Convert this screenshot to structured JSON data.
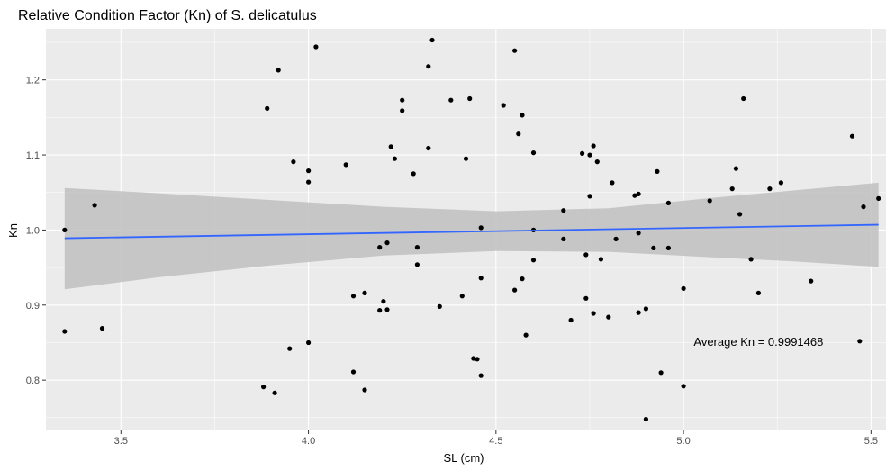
{
  "chart_data": {
    "type": "scatter",
    "title": "Relative Condition Factor (Kn) of S. delicatulus",
    "xlabel": "SL (cm)",
    "ylabel": "Kn",
    "xlim": [
      3.3,
      5.54
    ],
    "ylim": [
      0.733,
      1.268
    ],
    "x_ticks": [
      3.5,
      4.0,
      4.5,
      5.0,
      5.5
    ],
    "x_tick_labels": [
      "3.5",
      "4.0",
      "4.5",
      "5.0",
      "5.5"
    ],
    "y_ticks": [
      0.8,
      0.9,
      1.0,
      1.1,
      1.2
    ],
    "y_tick_labels": [
      "0.8",
      "0.9",
      "1.0",
      "1.1",
      "1.2"
    ],
    "grid": true,
    "points": [
      {
        "x": 3.35,
        "y": 1.0
      },
      {
        "x": 3.35,
        "y": 0.865
      },
      {
        "x": 3.43,
        "y": 1.033
      },
      {
        "x": 3.45,
        "y": 0.869
      },
      {
        "x": 3.88,
        "y": 0.791
      },
      {
        "x": 3.89,
        "y": 1.162
      },
      {
        "x": 3.91,
        "y": 0.783
      },
      {
        "x": 3.92,
        "y": 1.213
      },
      {
        "x": 3.95,
        "y": 0.842
      },
      {
        "x": 3.96,
        "y": 1.091
      },
      {
        "x": 4.0,
        "y": 1.079
      },
      {
        "x": 4.0,
        "y": 1.064
      },
      {
        "x": 4.0,
        "y": 0.85
      },
      {
        "x": 4.02,
        "y": 1.244
      },
      {
        "x": 4.1,
        "y": 1.087
      },
      {
        "x": 4.12,
        "y": 0.912
      },
      {
        "x": 4.12,
        "y": 0.811
      },
      {
        "x": 4.15,
        "y": 0.916
      },
      {
        "x": 4.15,
        "y": 0.787
      },
      {
        "x": 4.19,
        "y": 0.977
      },
      {
        "x": 4.2,
        "y": 0.905
      },
      {
        "x": 4.19,
        "y": 0.893
      },
      {
        "x": 4.21,
        "y": 0.983
      },
      {
        "x": 4.21,
        "y": 0.894
      },
      {
        "x": 4.22,
        "y": 1.111
      },
      {
        "x": 4.23,
        "y": 1.095
      },
      {
        "x": 4.25,
        "y": 1.173
      },
      {
        "x": 4.25,
        "y": 1.159
      },
      {
        "x": 4.28,
        "y": 1.075
      },
      {
        "x": 4.29,
        "y": 0.977
      },
      {
        "x": 4.29,
        "y": 0.954
      },
      {
        "x": 4.32,
        "y": 1.218
      },
      {
        "x": 4.32,
        "y": 1.109
      },
      {
        "x": 4.33,
        "y": 1.253
      },
      {
        "x": 4.35,
        "y": 0.898
      },
      {
        "x": 4.38,
        "y": 1.173
      },
      {
        "x": 4.41,
        "y": 0.912
      },
      {
        "x": 4.42,
        "y": 1.095
      },
      {
        "x": 4.43,
        "y": 1.175
      },
      {
        "x": 4.44,
        "y": 0.829
      },
      {
        "x": 4.45,
        "y": 0.828
      },
      {
        "x": 4.46,
        "y": 1.003
      },
      {
        "x": 4.46,
        "y": 0.936
      },
      {
        "x": 4.46,
        "y": 0.806
      },
      {
        "x": 4.52,
        "y": 1.166
      },
      {
        "x": 4.55,
        "y": 1.239
      },
      {
        "x": 4.55,
        "y": 0.92
      },
      {
        "x": 4.56,
        "y": 1.128
      },
      {
        "x": 4.57,
        "y": 1.153
      },
      {
        "x": 4.57,
        "y": 0.935
      },
      {
        "x": 4.58,
        "y": 0.86
      },
      {
        "x": 4.6,
        "y": 1.103
      },
      {
        "x": 4.6,
        "y": 1.0
      },
      {
        "x": 4.6,
        "y": 0.96
      },
      {
        "x": 4.68,
        "y": 1.026
      },
      {
        "x": 4.68,
        "y": 0.988
      },
      {
        "x": 4.7,
        "y": 0.88
      },
      {
        "x": 4.73,
        "y": 1.102
      },
      {
        "x": 4.74,
        "y": 0.967
      },
      {
        "x": 4.74,
        "y": 0.909
      },
      {
        "x": 4.75,
        "y": 1.1
      },
      {
        "x": 4.75,
        "y": 1.045
      },
      {
        "x": 4.76,
        "y": 1.112
      },
      {
        "x": 4.76,
        "y": 0.889
      },
      {
        "x": 4.77,
        "y": 1.091
      },
      {
        "x": 4.78,
        "y": 0.961
      },
      {
        "x": 4.8,
        "y": 0.884
      },
      {
        "x": 4.81,
        "y": 1.063
      },
      {
        "x": 4.82,
        "y": 0.988
      },
      {
        "x": 4.87,
        "y": 1.046
      },
      {
        "x": 4.88,
        "y": 1.048
      },
      {
        "x": 4.88,
        "y": 0.996
      },
      {
        "x": 4.88,
        "y": 0.89
      },
      {
        "x": 4.9,
        "y": 0.895
      },
      {
        "x": 4.9,
        "y": 0.748
      },
      {
        "x": 4.92,
        "y": 0.976
      },
      {
        "x": 4.93,
        "y": 1.078
      },
      {
        "x": 4.94,
        "y": 0.81
      },
      {
        "x": 4.96,
        "y": 1.036
      },
      {
        "x": 4.96,
        "y": 0.976
      },
      {
        "x": 5.0,
        "y": 0.922
      },
      {
        "x": 5.0,
        "y": 0.792
      },
      {
        "x": 5.07,
        "y": 1.039
      },
      {
        "x": 5.13,
        "y": 1.055
      },
      {
        "x": 5.14,
        "y": 1.082
      },
      {
        "x": 5.15,
        "y": 1.021
      },
      {
        "x": 5.16,
        "y": 1.175
      },
      {
        "x": 5.18,
        "y": 0.961
      },
      {
        "x": 5.2,
        "y": 0.916
      },
      {
        "x": 5.23,
        "y": 1.055
      },
      {
        "x": 5.26,
        "y": 1.063
      },
      {
        "x": 5.34,
        "y": 0.932
      },
      {
        "x": 5.45,
        "y": 1.125
      },
      {
        "x": 5.47,
        "y": 0.852
      },
      {
        "x": 5.48,
        "y": 1.031
      },
      {
        "x": 5.52,
        "y": 1.042
      }
    ],
    "trend_line": {
      "x": [
        3.35,
        5.52
      ],
      "y": [
        0.989,
        1.007
      ]
    },
    "confidence_band": {
      "x": [
        3.35,
        3.6,
        3.9,
        4.2,
        4.5,
        4.8,
        5.1,
        5.3,
        5.52
      ],
      "lower": [
        0.921,
        0.937,
        0.953,
        0.966,
        0.972,
        0.971,
        0.963,
        0.958,
        0.951
      ],
      "upper": [
        1.056,
        1.049,
        1.04,
        1.031,
        1.025,
        1.029,
        1.044,
        1.053,
        1.063
      ]
    },
    "annotation": {
      "text": "Average Kn = 0.9991468",
      "x": 5.2,
      "y": 0.846
    },
    "colors": {
      "background": "#ebebeb",
      "grid": "#ffffff",
      "point": "#000000",
      "line": "#3366ff",
      "band": "#bfbfbf"
    }
  }
}
